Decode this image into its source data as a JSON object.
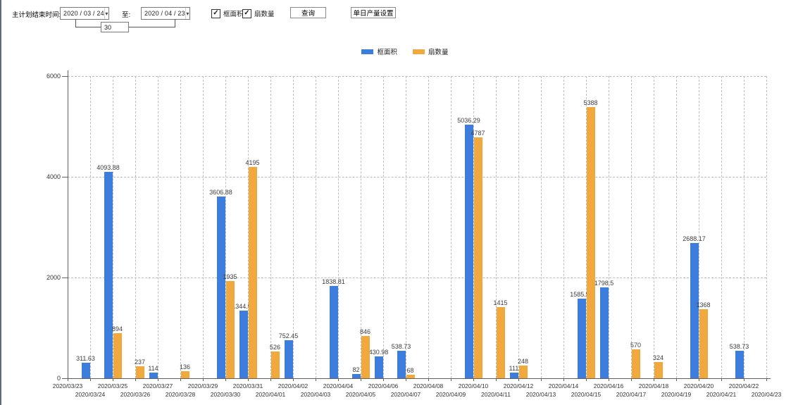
{
  "toolbar": {
    "label": "主计划结束时间:",
    "date_from": "2020 / 03 / 24",
    "to_label": "至:",
    "date_to": "2020 / 04 / 23",
    "interval_value": "30",
    "checkbox1": "框面积",
    "checkbox2": "扇数量",
    "query_button": "查询",
    "daily_output_button": "单日产量设置"
  },
  "legend": [
    {
      "label": "框面积",
      "color": "#3d7edd"
    },
    {
      "label": "扇数量",
      "color": "#f1a83d"
    }
  ],
  "chart_data": {
    "type": "bar",
    "categories": [
      "2020/03/23",
      "2020/03/24",
      "2020/03/25",
      "2020/03/26",
      "2020/03/27",
      "2020/03/28",
      "2020/03/29",
      "2020/03/30",
      "2020/03/31",
      "2020/04/01",
      "2020/04/02",
      "2020/04/03",
      "2020/04/04",
      "2020/04/05",
      "2020/04/06",
      "2020/04/07",
      "2020/04/08",
      "2020/04/09",
      "2020/04/10",
      "2020/04/11",
      "2020/04/12",
      "2020/04/13",
      "2020/04/14",
      "2020/04/15",
      "2020/04/16",
      "2020/04/17",
      "2020/04/18",
      "2020/04/19",
      "2020/04/20",
      "2020/04/21",
      "2020/04/22",
      "2020/04/23"
    ],
    "series": [
      {
        "name": "框面积",
        "color": "#3d7edd",
        "values": [
          "",
          "311.63",
          "4093.88",
          "",
          "114",
          "",
          "",
          "3606.88",
          "1344.95",
          "",
          "752.45",
          "",
          "1838.81",
          "82",
          "430.98",
          "538.73",
          "",
          "",
          "5036.29",
          "",
          "111",
          "",
          "",
          "1585.96",
          "1798.5",
          "",
          "",
          "",
          "2688.17",
          "",
          "538.73",
          ""
        ]
      },
      {
        "name": "扇数量",
        "color": "#f1a83d",
        "values": [
          "",
          "",
          "894",
          "237",
          "",
          "136",
          "",
          "1935",
          "4195",
          "526",
          "",
          "",
          "",
          "846",
          "",
          "68",
          "",
          "",
          "4787",
          "1415",
          "248",
          "",
          "",
          "5388",
          "",
          "570",
          "324",
          "",
          "1368",
          "",
          "",
          ""
        ]
      }
    ],
    "title": "",
    "xlabel": "",
    "ylabel": "",
    "ylim": [
      0,
      6000
    ],
    "yticks": [
      "0",
      "2000",
      "4000",
      "6000"
    ],
    "grid": true,
    "legend_position": "top"
  }
}
